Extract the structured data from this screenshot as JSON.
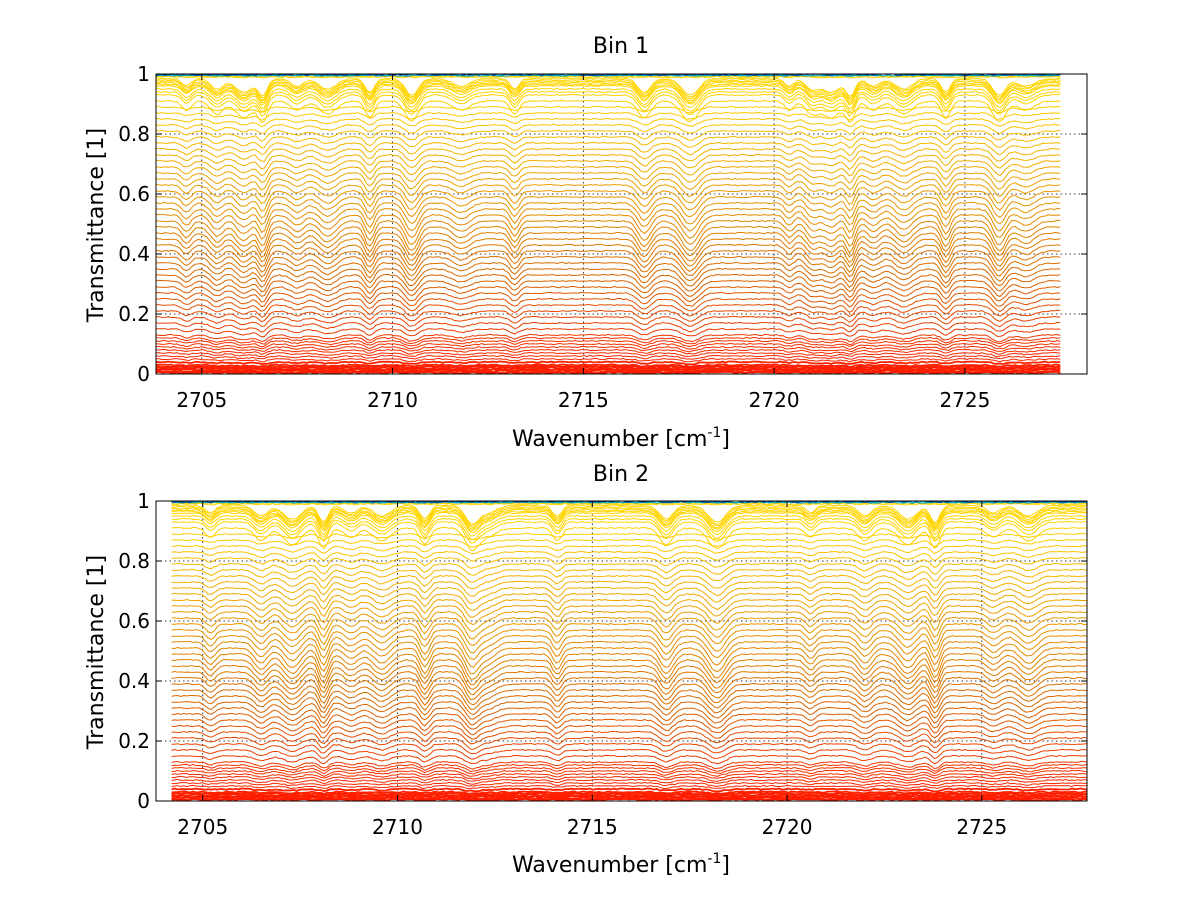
{
  "chart_data": [
    {
      "type": "line",
      "title": "Bin 1",
      "xlabel": "Wavenumber [cm",
      "xlabel_sup": "-1",
      "xlabel_end": "]",
      "ylabel": "Transmittance [1]",
      "xlim": [
        2703.8,
        2728.2
      ],
      "ylim": [
        0,
        1
      ],
      "x_ticks": [
        2705,
        2710,
        2715,
        2720,
        2725
      ],
      "x_tick_labels": [
        "2705",
        "2710",
        "2715",
        "2720",
        "2725"
      ],
      "y_ticks": [
        0,
        0.2,
        0.4,
        0.6,
        0.8,
        1
      ],
      "y_tick_labels": [
        "0",
        "0.2",
        "0.4",
        "0.6",
        "0.8",
        "1"
      ],
      "grid": true,
      "x_range": [
        2703.8,
        2727.5
      ],
      "series_count": 70,
      "baseline_levels": [
        0.005,
        0.01,
        0.015,
        0.02,
        0.025,
        0.03,
        0.04,
        0.05,
        0.06,
        0.07,
        0.08,
        0.09,
        0.1,
        0.11,
        0.12,
        0.13,
        0.15,
        0.17,
        0.19,
        0.21,
        0.23,
        0.25,
        0.27,
        0.29,
        0.31,
        0.33,
        0.35,
        0.37,
        0.39,
        0.41,
        0.43,
        0.45,
        0.47,
        0.49,
        0.51,
        0.53,
        0.55,
        0.57,
        0.59,
        0.61,
        0.63,
        0.65,
        0.67,
        0.69,
        0.71,
        0.73,
        0.75,
        0.77,
        0.79,
        0.81,
        0.83,
        0.85,
        0.87,
        0.89,
        0.91,
        0.93,
        0.94,
        0.95,
        0.96,
        0.965,
        0.97,
        0.975,
        0.98,
        0.985,
        0.99,
        0.993,
        0.995,
        0.997,
        0.998,
        0.999
      ],
      "absorption_lines": [
        2704.6,
        2705.4,
        2706.1,
        2706.6,
        2707.5,
        2708.3,
        2709.4,
        2710.5,
        2711.8,
        2713.2,
        2716.6,
        2717.8,
        2720.4,
        2721.0,
        2721.5,
        2722.0,
        2722.6,
        2723.4,
        2724.5,
        2725.9,
        2726.6
      ],
      "colors": {
        "low": "#ff1a00",
        "mid": "#d96a00",
        "high": "#ffd500",
        "top": "#00a0c0",
        "topmost": "#0040a0"
      }
    },
    {
      "type": "line",
      "title": "Bin 2",
      "xlabel": "Wavenumber [cm",
      "xlabel_sup": "-1",
      "xlabel_end": "]",
      "ylabel": "Transmittance [1]",
      "xlim": [
        2703.8,
        2727.7
      ],
      "ylim": [
        0,
        1
      ],
      "x_ticks": [
        2705,
        2710,
        2715,
        2720,
        2725
      ],
      "x_tick_labels": [
        "2705",
        "2710",
        "2715",
        "2720",
        "2725"
      ],
      "y_ticks": [
        0,
        0.2,
        0.4,
        0.6,
        0.8,
        1
      ],
      "y_tick_labels": [
        "0",
        "0.2",
        "0.4",
        "0.6",
        "0.8",
        "1"
      ],
      "grid": true,
      "x_range": [
        2704.2,
        2727.7
      ],
      "series_count": 70,
      "baseline_levels": [
        0.005,
        0.01,
        0.015,
        0.02,
        0.025,
        0.03,
        0.04,
        0.05,
        0.06,
        0.07,
        0.08,
        0.09,
        0.1,
        0.11,
        0.12,
        0.13,
        0.15,
        0.17,
        0.19,
        0.21,
        0.23,
        0.25,
        0.27,
        0.29,
        0.31,
        0.33,
        0.35,
        0.37,
        0.39,
        0.41,
        0.43,
        0.45,
        0.47,
        0.49,
        0.51,
        0.53,
        0.55,
        0.57,
        0.59,
        0.61,
        0.63,
        0.65,
        0.67,
        0.69,
        0.71,
        0.73,
        0.75,
        0.77,
        0.79,
        0.81,
        0.83,
        0.85,
        0.87,
        0.89,
        0.91,
        0.93,
        0.94,
        0.95,
        0.96,
        0.965,
        0.97,
        0.975,
        0.98,
        0.985,
        0.99,
        0.993,
        0.995,
        0.997,
        0.998,
        0.999
      ],
      "absorption_lines": [
        2705.2,
        2706.5,
        2707.3,
        2708.1,
        2708.8,
        2709.6,
        2710.7,
        2711.9,
        2712.3,
        2714.1,
        2716.9,
        2718.2,
        2720.6,
        2722.0,
        2723.1,
        2723.8,
        2725.3,
        2726.2
      ],
      "colors": {
        "low": "#ff1a00",
        "mid": "#d96a00",
        "high": "#ffd500",
        "top": "#00a0c0",
        "topmost": "#0040a0"
      }
    }
  ]
}
